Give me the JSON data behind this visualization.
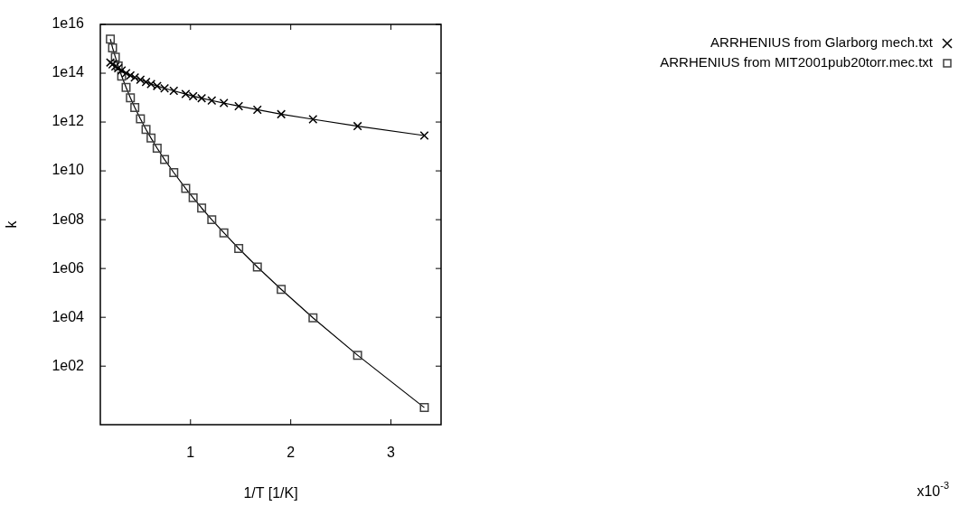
{
  "chart_data": {
    "type": "line",
    "xlabel": "1/T [1/K]",
    "ylabel": "k",
    "log": "y",
    "legend": "top right",
    "grid": false,
    "x": [
      3.333,
      2.667,
      2.222,
      1.905,
      1.667,
      1.481,
      1.333,
      1.212,
      1.111,
      1.026,
      0.952,
      0.833,
      0.741,
      0.667,
      0.606,
      0.556,
      0.5,
      0.444,
      0.4,
      0.357,
      0.313,
      0.278,
      0.25,
      0.222,
      0.2
    ],
    "series": [
      {
        "name": "ARRHENIUS from Glarborg mech.txt",
        "color": "#000000",
        "marker": "cross",
        "values": [
          280000000000.0,
          680000000000.0,
          1300000000000.0,
          2100000000000.0,
          3200000000000.0,
          4500000000000.0,
          6000000000000.0,
          7600000000000.0,
          9500000000000.0,
          11500000000000.0,
          14000000000000.0,
          19000000000000.0,
          24000000000000.0,
          30000000000000.0,
          36000000000000.0,
          44000000000000.0,
          54000000000000.0,
          67000000000000.0,
          81000000000000.0,
          100000000000000.0,
          130000000000000.0,
          160000000000000.0,
          190000000000000.0,
          230000000000000.0,
          275000000000000.0
        ]
      },
      {
        "name": "ARRHENIUS from MIT2001pub20torr.mec.txt",
        "color": "#404040",
        "marker": "square",
        "values": [
          2.0,
          280.0,
          9500.0,
          140000.0,
          1150000.0,
          6600000.0,
          29000000.0,
          100000000.0,
          300000000.0,
          790000000.0,
          1900000000.0,
          8500000000.0,
          29000000000.0,
          85000000000.0,
          220000000000.0,
          500000000000.0,
          1350000000000.0,
          3900000000000.0,
          9800000000000.0,
          26000000000000.0,
          76000000000000.0,
          200000000000000.0,
          460000000000000.0,
          1100000000000000.0,
          2500000000000000.0
        ]
      }
    ],
    "xlim": [
      0.1,
      3.5
    ],
    "xticks": [
      1,
      2,
      3
    ],
    "ylim": [
      0.4,
      1e+16
    ],
    "yticks": [
      {
        "value": 100.0,
        "label": "1e02"
      },
      {
        "value": 10000.0,
        "label": "1e04"
      },
      {
        "value": 1000000.0,
        "label": "1e06"
      },
      {
        "value": 100000000.0,
        "label": "1e08"
      },
      {
        "value": 10000000000.0,
        "label": "1e10"
      },
      {
        "value": 1000000000000.0,
        "label": "1e12"
      },
      {
        "value": 100000000000000.0,
        "label": "1e14"
      },
      {
        "value": 1e+16,
        "label": "1e16"
      }
    ],
    "annotations": [
      "x10$^{-3}$"
    ]
  }
}
